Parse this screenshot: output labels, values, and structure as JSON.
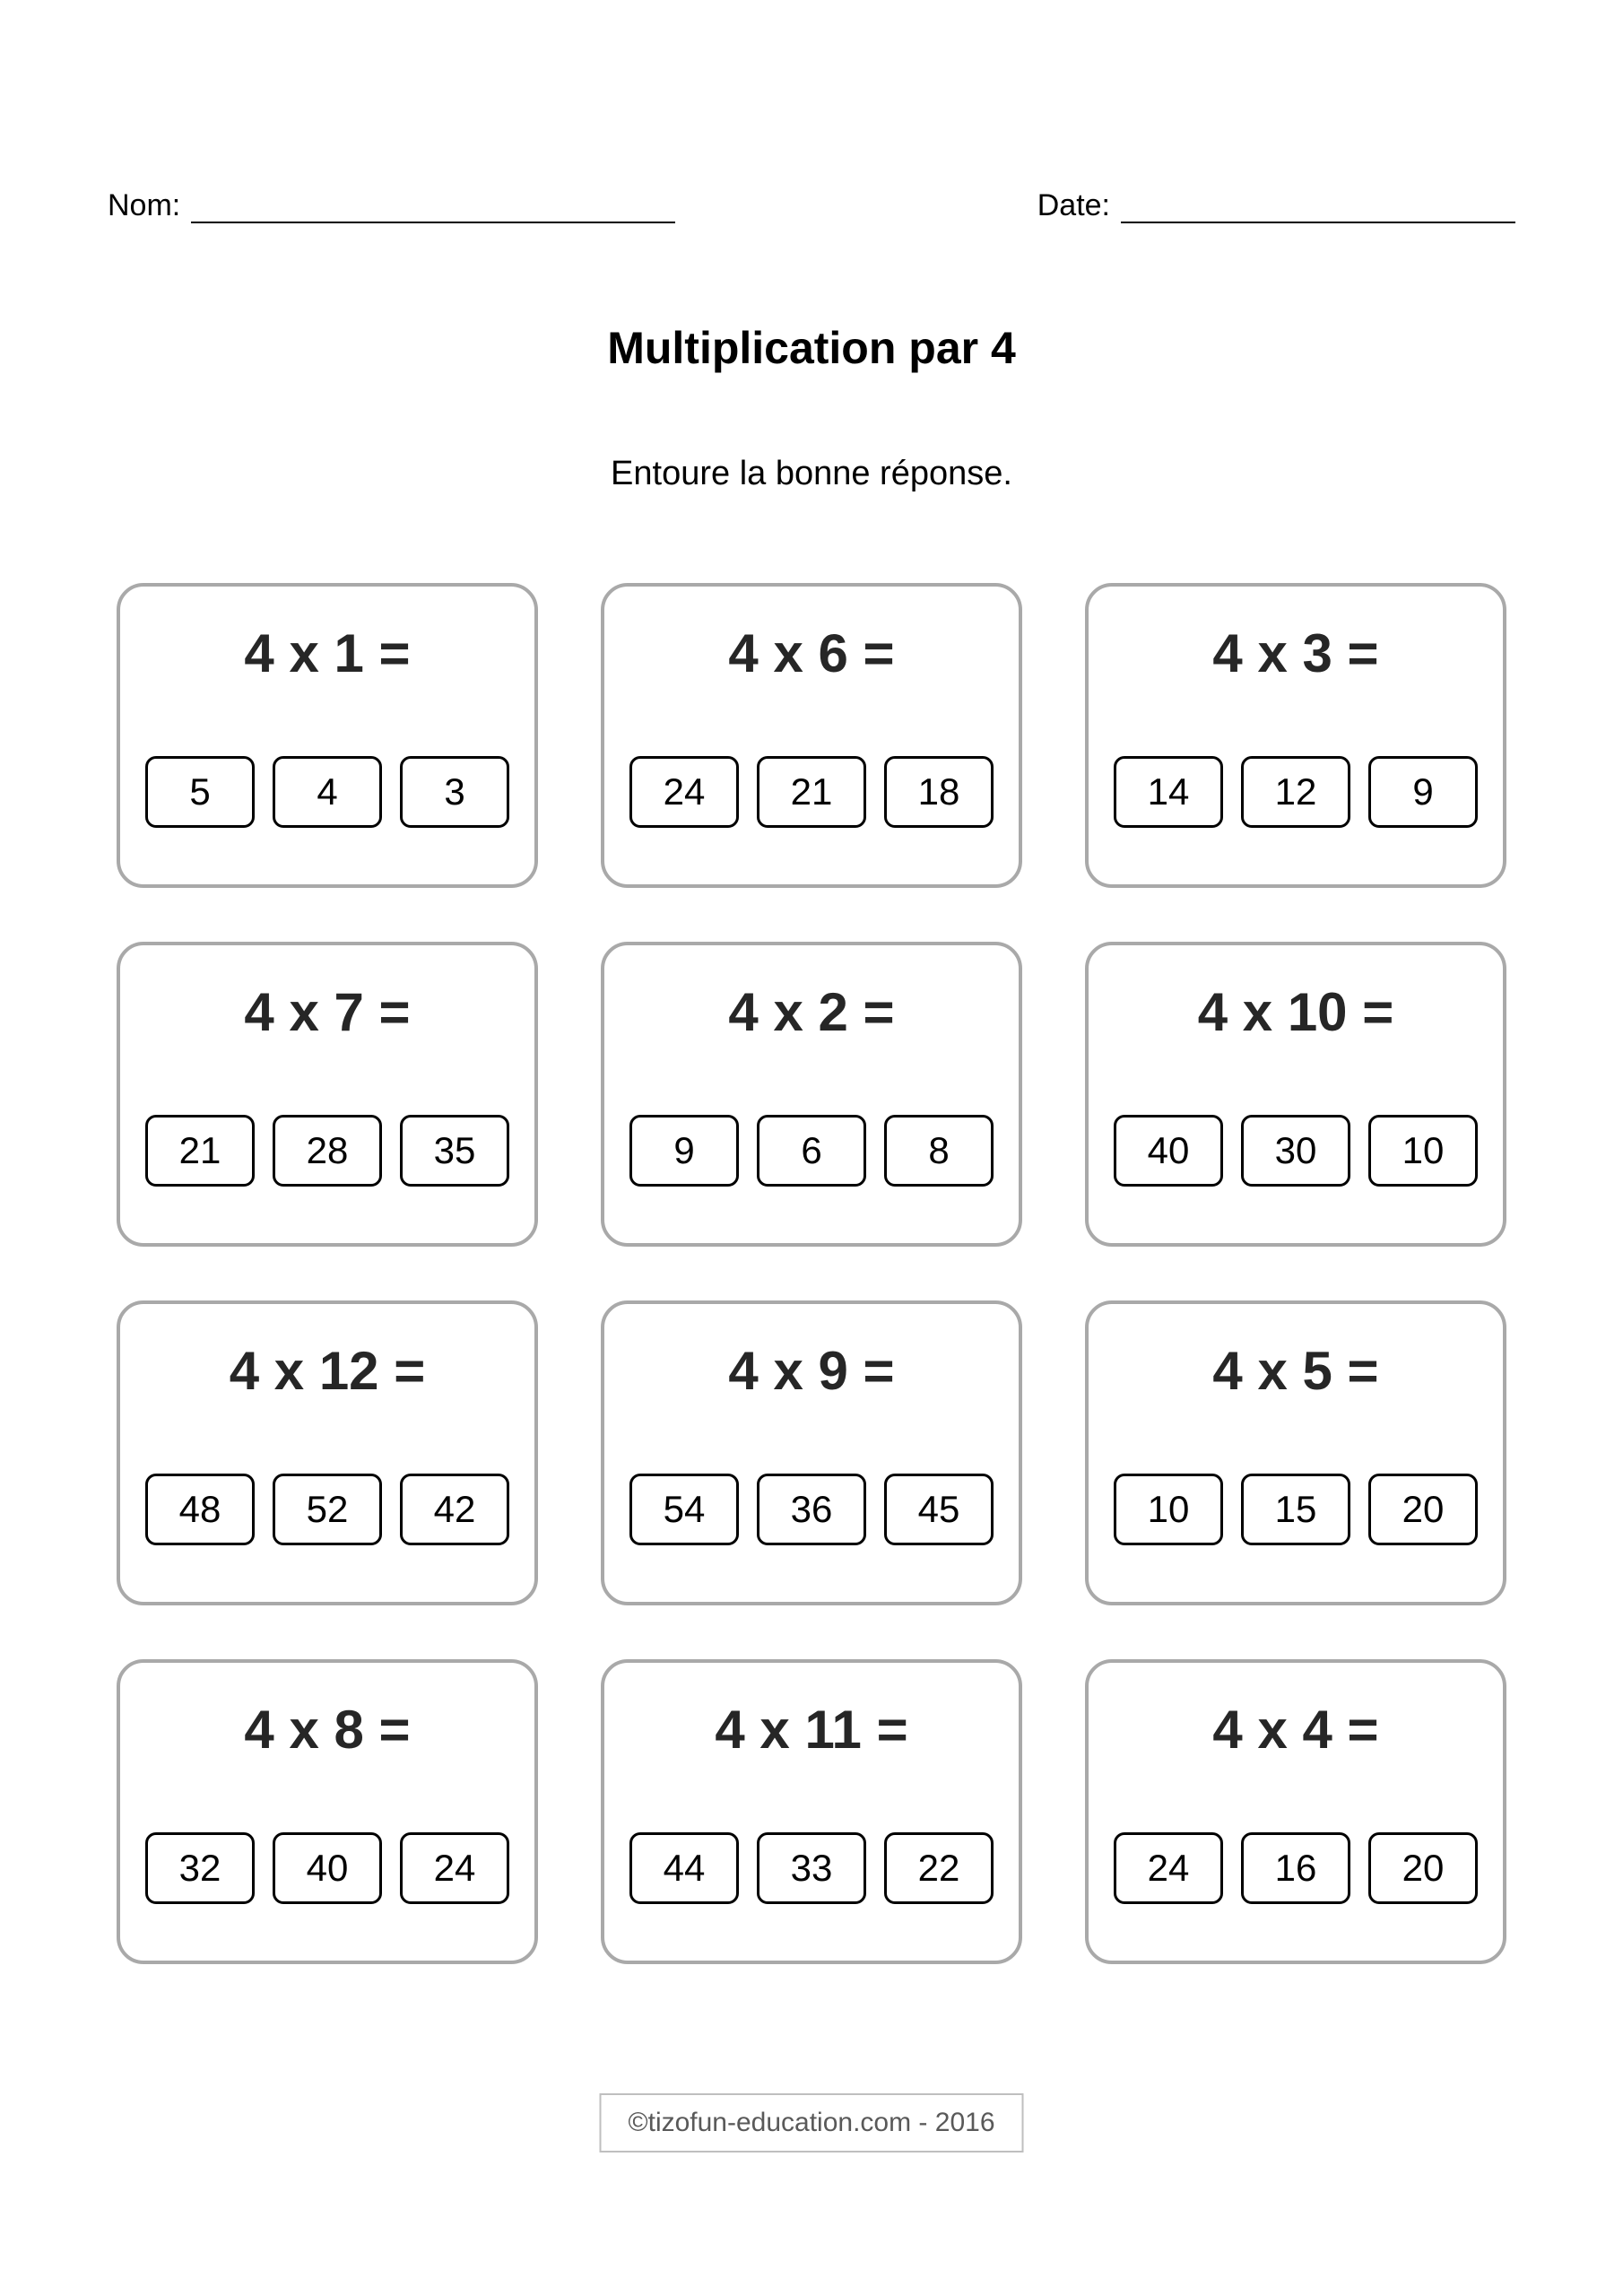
{
  "header": {
    "name_label": "Nom:",
    "date_label": "Date:"
  },
  "title": "Multiplication par 4",
  "instruction": "Entoure la bonne réponse.",
  "card_border_color": "#a9a9a9",
  "option_border_color": "#000000",
  "questions": [
    {
      "q": "4 x 1 =",
      "opts": [
        "5",
        "4",
        "3"
      ]
    },
    {
      "q": "4 x 6 =",
      "opts": [
        "24",
        "21",
        "18"
      ]
    },
    {
      "q": "4 x 3 =",
      "opts": [
        "14",
        "12",
        "9"
      ]
    },
    {
      "q": "4 x 7 =",
      "opts": [
        "21",
        "28",
        "35"
      ]
    },
    {
      "q": "4 x 2 =",
      "opts": [
        "9",
        "6",
        "8"
      ]
    },
    {
      "q": "4 x 10 =",
      "opts": [
        "40",
        "30",
        "10"
      ]
    },
    {
      "q": "4 x 12 =",
      "opts": [
        "48",
        "52",
        "42"
      ]
    },
    {
      "q": "4 x 9 =",
      "opts": [
        "54",
        "36",
        "45"
      ]
    },
    {
      "q": "4 x 5 =",
      "opts": [
        "10",
        "15",
        "20"
      ]
    },
    {
      "q": "4 x 8 =",
      "opts": [
        "32",
        "40",
        "24"
      ]
    },
    {
      "q": "4 x 11 =",
      "opts": [
        "44",
        "33",
        "22"
      ]
    },
    {
      "q": "4 x 4 =",
      "opts": [
        "24",
        "16",
        "20"
      ]
    }
  ],
  "footer": "©tizofun-education.com - 2016"
}
